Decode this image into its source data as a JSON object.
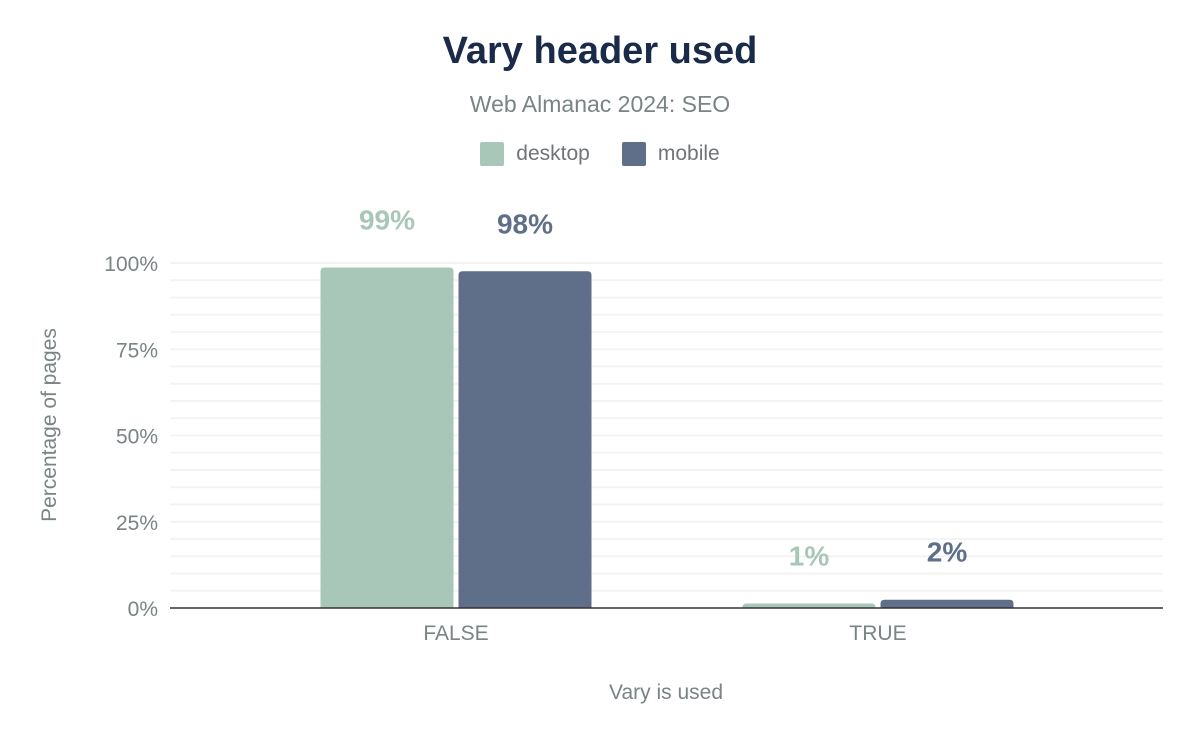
{
  "chart_data": {
    "type": "bar",
    "title": "Vary header used",
    "subtitle": "Web Almanac 2024: SEO",
    "xlabel": "Vary is used",
    "ylabel": "Percentage of pages",
    "categories": [
      "FALSE",
      "TRUE"
    ],
    "series": [
      {
        "name": "desktop",
        "color": "#a8c7b8",
        "values": [
          98.7,
          1.3
        ],
        "labels": [
          "99%",
          "1%"
        ]
      },
      {
        "name": "mobile",
        "color": "#5f6f8a",
        "values": [
          97.6,
          2.4
        ],
        "labels": [
          "98%",
          "2%"
        ]
      }
    ],
    "ylim": [
      0,
      100
    ],
    "yticks": [
      0,
      25,
      50,
      75,
      100
    ],
    "ytick_labels": [
      "0%",
      "25%",
      "50%",
      "75%",
      "100%"
    ],
    "minor_grid_step": 5,
    "grid": true,
    "legend_position": "top"
  }
}
